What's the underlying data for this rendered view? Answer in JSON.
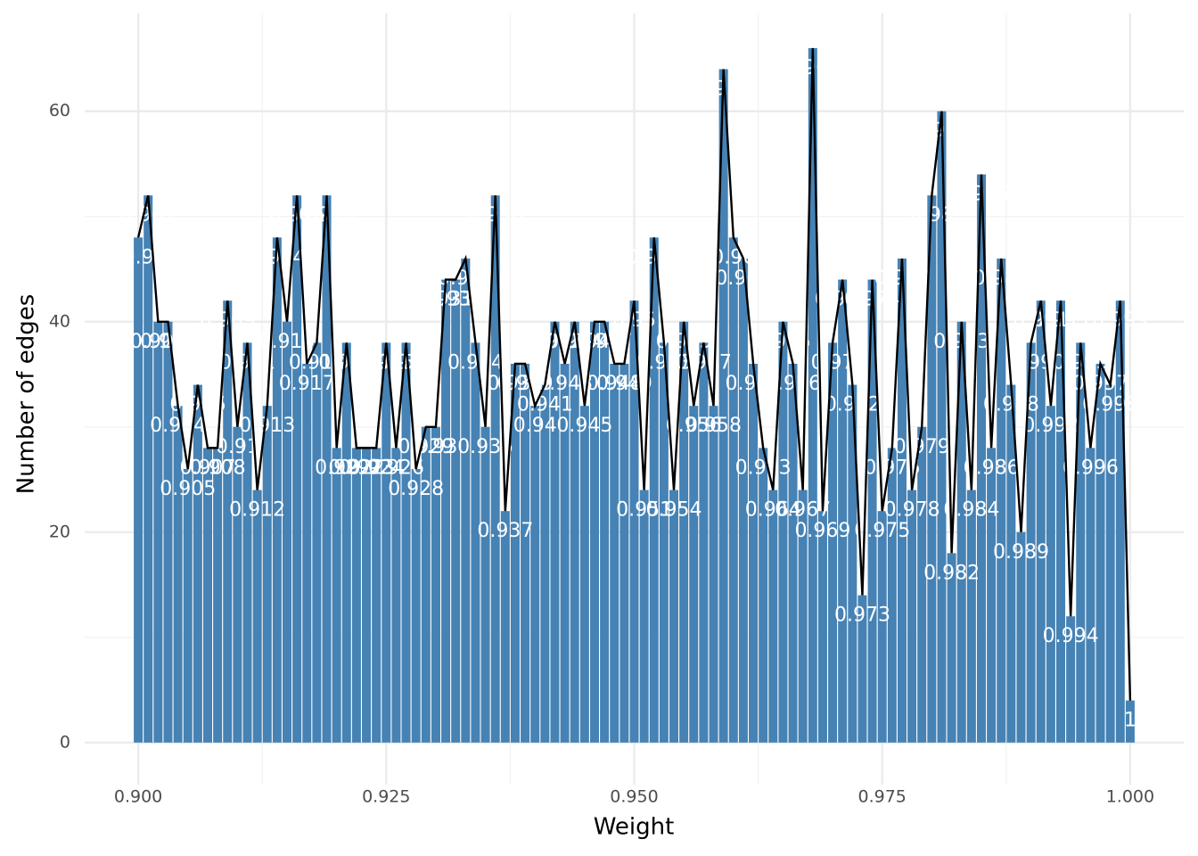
{
  "chart_data": {
    "type": "bar",
    "x_label": "Weight",
    "y_label": "Number of edges",
    "color": "#4682b4",
    "line_color": "#000000",
    "label_color": "#ffffff",
    "x": [
      0.9,
      0.901,
      0.902,
      0.903,
      0.904,
      0.905,
      0.906,
      0.907,
      0.908,
      0.909,
      0.91,
      0.911,
      0.912,
      0.913,
      0.914,
      0.915,
      0.916,
      0.917,
      0.918,
      0.919,
      0.92,
      0.921,
      0.922,
      0.923,
      0.924,
      0.925,
      0.926,
      0.927,
      0.928,
      0.929,
      0.93,
      0.931,
      0.932,
      0.933,
      0.934,
      0.935,
      0.936,
      0.937,
      0.938,
      0.939,
      0.94,
      0.941,
      0.942,
      0.943,
      0.944,
      0.945,
      0.946,
      0.947,
      0.948,
      0.949,
      0.95,
      0.951,
      0.952,
      0.953,
      0.954,
      0.955,
      0.956,
      0.957,
      0.958,
      0.959,
      0.96,
      0.961,
      0.962,
      0.963,
      0.964,
      0.965,
      0.966,
      0.967,
      0.968,
      0.969,
      0.97,
      0.971,
      0.972,
      0.973,
      0.974,
      0.975,
      0.976,
      0.977,
      0.978,
      0.979,
      0.98,
      0.981,
      0.982,
      0.983,
      0.984,
      0.985,
      0.986,
      0.987,
      0.988,
      0.989,
      0.99,
      0.991,
      0.992,
      0.993,
      0.994,
      0.995,
      0.996,
      0.997,
      0.998,
      0.999,
      1
    ],
    "values": [
      48,
      52,
      40,
      40,
      32,
      26,
      34,
      28,
      28,
      42,
      30,
      38,
      24,
      32,
      48,
      40,
      52,
      36,
      38,
      52,
      28,
      38,
      28,
      28,
      28,
      38,
      28,
      38,
      26,
      30,
      30,
      44,
      44,
      46,
      38,
      30,
      52,
      22,
      36,
      36,
      32,
      34,
      40,
      36,
      40,
      32,
      40,
      40,
      36,
      36,
      42,
      24,
      48,
      38,
      24,
      40,
      32,
      38,
      32,
      64,
      48,
      46,
      36,
      28,
      24,
      40,
      36,
      24,
      66,
      22,
      38,
      44,
      34,
      14,
      44,
      22,
      28,
      46,
      24,
      30,
      52,
      60,
      18,
      40,
      24,
      54,
      28,
      46,
      34,
      20,
      38,
      42,
      32,
      42,
      12,
      38,
      28,
      36,
      34,
      42,
      4
    ],
    "xlim": [
      0.8946,
      1.0054
    ],
    "ylim": [
      -4,
      69.3
    ],
    "xticks": [
      {
        "value": 0.9,
        "label": "0.900"
      },
      {
        "value": 0.925,
        "label": "0.925"
      },
      {
        "value": 0.95,
        "label": "0.950"
      },
      {
        "value": 0.975,
        "label": "0.975"
      },
      {
        "value": 1,
        "label": "1.000"
      }
    ],
    "yticks": [
      0,
      20,
      40,
      60
    ],
    "x_minor_ticks": [
      0.9125,
      0.9375,
      0.9625,
      0.9875
    ],
    "y_minor_ticks": [
      10,
      30,
      50
    ],
    "grid": true
  }
}
